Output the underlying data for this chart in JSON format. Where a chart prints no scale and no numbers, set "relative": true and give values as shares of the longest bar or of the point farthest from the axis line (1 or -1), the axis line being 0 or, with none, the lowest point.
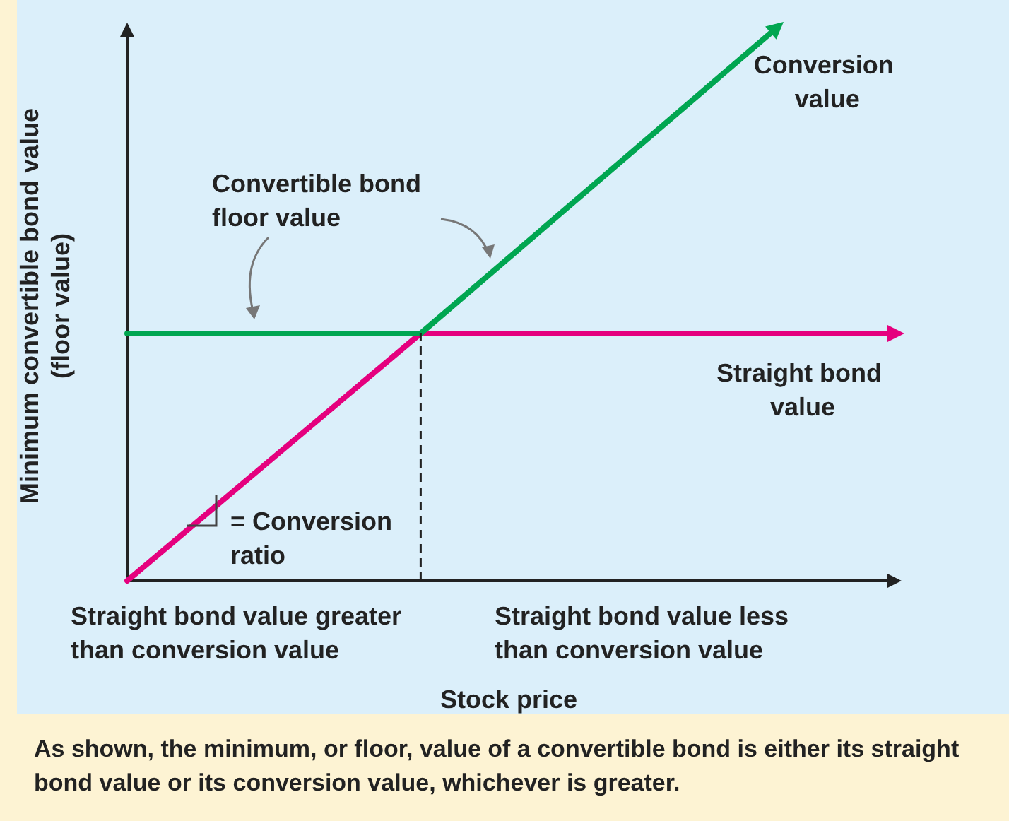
{
  "chart_data": {
    "type": "line",
    "relative": true,
    "xlabel": "Stock price",
    "ylabel": "Minimum convertible bond value\n(floor value)",
    "categories": [
      null,
      null,
      null,
      null,
      null,
      null,
      null,
      null,
      null,
      null,
      null,
      null,
      null,
      null,
      null,
      null,
      null,
      null,
      null,
      null,
      null,
      null,
      null,
      null,
      null,
      null,
      null
    ],
    "series": [
      {
        "name": "Conversion value",
        "color": "#00a651",
        "values": [
          0.45,
          null,
          null,
          null,
          null,
          null,
          null,
          null,
          null,
          null,
          0.45,
          null,
          null,
          null,
          null,
          null,
          null,
          null,
          null,
          null,
          null,
          null,
          1,
          null,
          null,
          null,
          null
        ]
      },
      {
        "name": "Straight bond value",
        "color": "#e5007e",
        "values": [
          0,
          null,
          null,
          null,
          null,
          null,
          null,
          null,
          null,
          null,
          0.45,
          null,
          null,
          null,
          null,
          null,
          null,
          null,
          null,
          null,
          null,
          null,
          null,
          null,
          null,
          null,
          0.45
        ]
      }
    ],
    "annotations": [
      "Convertible bond floor value",
      "= Conversion ratio",
      "Straight bond value greater than conversion value",
      "Straight bond value less than conversion value",
      "As shown, the minimum, or floor, value of a convertible bond is either its straight bond value or its conversion value, whichever is greater."
    ],
    "grid": false,
    "legend": false,
    "marker": "none",
    "line_style": "solid"
  }
}
